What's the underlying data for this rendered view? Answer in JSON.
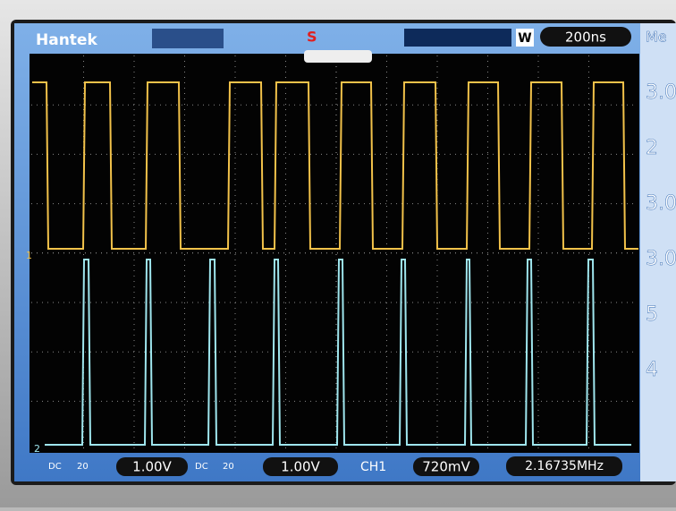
{
  "header": {
    "brand": "Hantek",
    "run_state": "S",
    "window_mode": "W",
    "timebase": "200ns"
  },
  "channels": [
    {
      "marker": "1",
      "coupling": "DC",
      "bandwidth": "20",
      "scale": "1.00V"
    },
    {
      "marker": "2",
      "coupling": "DC",
      "bandwidth": "20",
      "scale": "1.00V"
    }
  ],
  "trigger": {
    "source": "CH1",
    "level": "720mV"
  },
  "frequency": "2.16735MHz",
  "side_panel": [
    "Me",
    "3.0",
    "2",
    "3.0",
    "3.0",
    "5",
    "4"
  ]
}
